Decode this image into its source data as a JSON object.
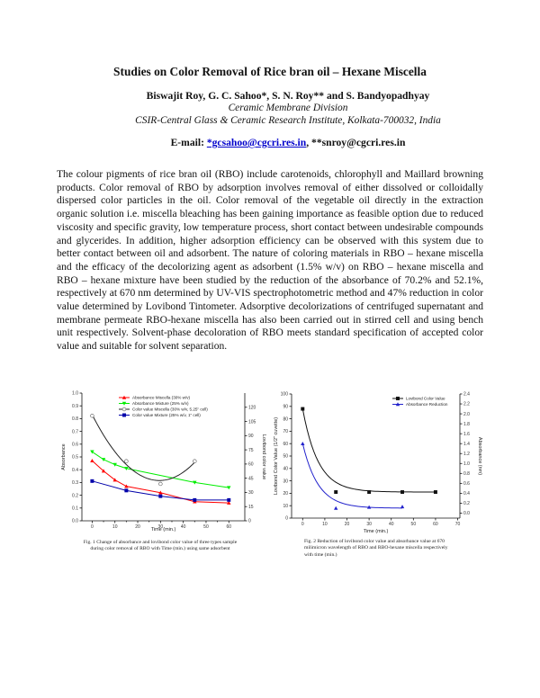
{
  "paper": {
    "title": "Studies on Color Removal of Rice bran oil – Hexane Miscella",
    "authors": "Biswajit Roy, G. C. Sahoo*, S. N. Roy** and S. Bandyopadhyay",
    "division": "Ceramic Membrane Division",
    "institute": "CSIR-Central Glass & Ceramic Research Institute, Kolkata-700032, India",
    "email_label": "E-mail: ",
    "email_1": "*gcsahoo@cgcri.res.in",
    "email_sep": ", ",
    "email_2": "**snroy@cgcri.res.in",
    "abstract": "The colour pigments of rice bran oil (RBO) include carotenoids, chlorophyll and Maillard browning products. Color removal of RBO by adsorption involves removal of either dissolved or colloidally dispersed color particles in the oil. Color removal of the vegetable oil directly in the extraction organic solution i.e. miscella bleaching has been gaining importance as feasible option due to reduced viscosity and specific gravity, low temperature process, short contact between undesirable compounds and glycerides. In addition, higher adsorption efficiency can be observed with this system due to better contact between oil and adsorbent. The nature of coloring materials in RBO – hexane miscella and the efficacy of the decolorizing agent as adsorbent (1.5% w/v) on RBO – hexane miscella and RBO – hexane mixture have been studied by the reduction of the absorbance of 70.2% and 52.1%, respectively at 670 nm determined by UV-VIS spectrophotometric method and 47% reduction in color value determined by Lovibond Tintometer. Adsorptive decolorizations of centrifuged supernatant and membrane permeate RBO-hexane miscella has also been carried out in stirred cell and using bench unit respectively. Solvent-phase decoloration of RBO meets standard specification of accepted color value and suitable for solvent separation."
  },
  "chart_data": [
    {
      "type": "line",
      "caption": "Fig. 1 Change of absorbance and lovibond color value of three types sample during color removal of RBO with Time (min.) using same adsorbent",
      "xlabel": "Time (min.)",
      "ylabel": "Absorbance",
      "y2label": "Lovibond color value",
      "xlim": [
        -4.5,
        67
      ],
      "ylim": [
        0,
        1.0
      ],
      "y2lim": [
        0,
        135
      ],
      "xticks": [
        0,
        10,
        20,
        30,
        40,
        50,
        60
      ],
      "yticks": [
        0.0,
        0.1,
        0.2,
        0.3,
        0.4,
        0.5,
        0.6,
        0.7,
        0.8,
        0.9,
        1.0
      ],
      "y2ticks": [
        0,
        15,
        30,
        45,
        60,
        75,
        90,
        105,
        120
      ],
      "legend": "top-right",
      "grid": false,
      "series": [
        {
          "name": "Absorbance Miscella (30% w/v)",
          "axis": "left",
          "color": "#ff0000",
          "marker": "triangle-up",
          "x": [
            0,
            5,
            10,
            15,
            30,
            45,
            60
          ],
          "y": [
            0.47,
            0.39,
            0.32,
            0.27,
            0.22,
            0.15,
            0.14
          ]
        },
        {
          "name": "Absorbance Mixture (25% w/v)",
          "axis": "left",
          "color": "#00ee00",
          "marker": "triangle-down",
          "x": [
            0,
            5,
            10,
            15,
            45,
            60
          ],
          "y": [
            0.54,
            0.48,
            0.44,
            0.41,
            0.3,
            0.26
          ]
        },
        {
          "name": "Color value Miscella (30% w/v, 5.25\" cell)",
          "axis": "right",
          "color": "#222222",
          "marker": "open-circle",
          "fit": "polynomial",
          "x": [
            0,
            15,
            30,
            45
          ],
          "y": [
            111,
            63,
            39,
            63
          ]
        },
        {
          "name": "Color value Mixture (25% w/v, 1\" cell)",
          "axis": "right",
          "color": "#0000aa",
          "marker": "square",
          "x": [
            0,
            15,
            30,
            45,
            60
          ],
          "y": [
            42,
            32,
            26,
            22,
            22
          ]
        }
      ]
    },
    {
      "type": "line",
      "caption": "Fig. 2 Reduction of lovibond color value and absorbance value at 670 milimicron wavelength of RBO and RBO-hexane miscella respectively with time (min.)",
      "xlabel": "Time (min.)",
      "ylabel": "Lovibond Color Value (1/2\" cuvette)",
      "y2label": "Absorbance (nm)",
      "xlim": [
        -5,
        71
      ],
      "ylim": [
        0,
        100
      ],
      "y2lim": [
        -0.1,
        2.4
      ],
      "xticks": [
        0,
        10,
        20,
        30,
        40,
        50,
        60,
        70
      ],
      "yticks": [
        0,
        10,
        20,
        30,
        40,
        50,
        60,
        70,
        80,
        90,
        100
      ],
      "y2ticks": [
        0.0,
        0.2,
        0.4,
        0.6,
        0.8,
        1.0,
        1.2,
        1.4,
        1.6,
        1.8,
        2.0,
        2.2,
        2.4
      ],
      "legend": "top-right",
      "grid": false,
      "series": [
        {
          "name": "Lovibond Color Value",
          "axis": "left",
          "color": "#111111",
          "marker": "square",
          "fit": "exponential",
          "x": [
            0,
            15,
            30,
            45,
            60
          ],
          "y": [
            88,
            21,
            21,
            21,
            21
          ]
        },
        {
          "name": "Absorbance Reduction",
          "axis": "right",
          "color": "#2222cc",
          "marker": "triangle-up",
          "fit": "exponential",
          "x": [
            0,
            15,
            30,
            45
          ],
          "y": [
            1.4,
            0.1,
            0.12,
            0.13
          ]
        }
      ]
    }
  ]
}
